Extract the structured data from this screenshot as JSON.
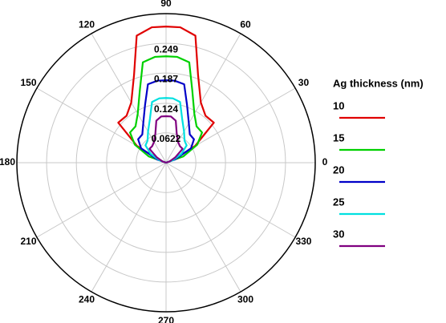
{
  "chart_data": {
    "type": "polar",
    "legend_title": "Ag thickness (nm)",
    "rlim": [
      0,
      0.311
    ],
    "rticks": [
      0.0622,
      0.124,
      0.187,
      0.249
    ],
    "thetaticks": [
      0,
      30,
      60,
      90,
      120,
      150,
      180,
      210,
      240,
      270,
      300,
      330
    ],
    "theta": [
      0,
      20,
      30,
      40,
      50,
      60,
      70,
      77,
      84,
      90,
      96,
      103,
      110,
      120,
      130,
      140,
      150,
      160,
      180
    ],
    "grid": true,
    "series": [
      {
        "name": "10",
        "color": "#e00000",
        "values": [
          0,
          0.014,
          0.07,
          0.13,
          0.128,
          0.145,
          0.195,
          0.272,
          0.284,
          0.284,
          0.284,
          0.272,
          0.195,
          0.145,
          0.128,
          0.13,
          0.07,
          0.014,
          0
        ]
      },
      {
        "name": "15",
        "color": "#00d000",
        "values": [
          0,
          0.038,
          0.075,
          0.098,
          0.099,
          0.118,
          0.16,
          0.215,
          0.222,
          0.222,
          0.222,
          0.215,
          0.16,
          0.118,
          0.099,
          0.098,
          0.075,
          0.038,
          0
        ]
      },
      {
        "name": "20",
        "color": "#0000c8",
        "values": [
          0,
          0.02,
          0.06,
          0.076,
          0.077,
          0.095,
          0.128,
          0.168,
          0.172,
          0.172,
          0.172,
          0.168,
          0.128,
          0.095,
          0.077,
          0.076,
          0.06,
          0.02,
          0
        ]
      },
      {
        "name": "25",
        "color": "#00e0e0",
        "values": [
          0,
          0.015,
          0.037,
          0.056,
          0.06,
          0.075,
          0.098,
          0.13,
          0.135,
          0.135,
          0.135,
          0.13,
          0.098,
          0.075,
          0.06,
          0.056,
          0.037,
          0.015,
          0
        ]
      },
      {
        "name": "30",
        "color": "#800080",
        "values": [
          0,
          0.008,
          0.022,
          0.045,
          0.045,
          0.05,
          0.065,
          0.09,
          0.097,
          0.097,
          0.097,
          0.09,
          0.065,
          0.05,
          0.045,
          0.045,
          0.022,
          0.008,
          0
        ]
      }
    ]
  }
}
